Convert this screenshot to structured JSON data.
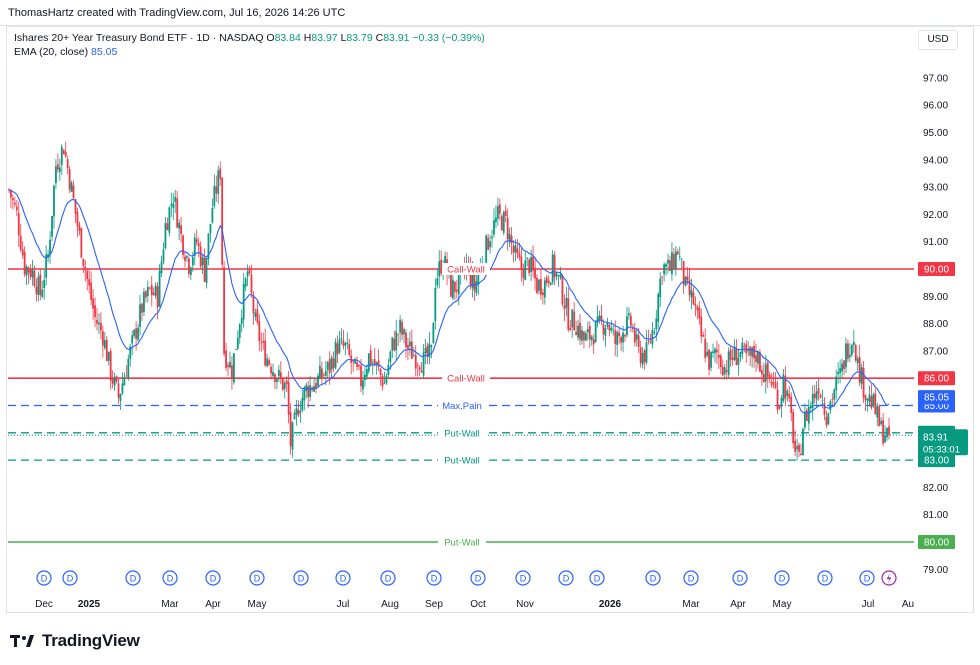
{
  "header": {
    "attribution": "ThomasHartz created with TradingView.com, Jul 16, 2026 14:26 UTC"
  },
  "legend": {
    "symbol": "Ishares 20+ Year Treasury Bond ETF · 1D · NASDAQ",
    "open_label": "O",
    "open": "83.84",
    "high_label": "H",
    "high": "83.97",
    "low_label": "L",
    "low": "83.79",
    "close_label": "C",
    "close": "83.91",
    "change": "−0.33 (−0.39%)",
    "ema_label": "EMA (20, close)",
    "ema_value": "85.05"
  },
  "currency": "USD",
  "footer": {
    "brand": "TradingView"
  },
  "colors": {
    "up": "#089981",
    "down": "#f23645",
    "ema": "#2962ff",
    "call_wall": "#f23645",
    "put_wall": "#089981",
    "max_pain": "#2962ff",
    "put_wall_strong": "#4caf50"
  },
  "chart_data": {
    "type": "candlestick",
    "yaxis": {
      "ticks": [
        79,
        80,
        81,
        82,
        83,
        84,
        85,
        86,
        87,
        88,
        89,
        90,
        91,
        92,
        93,
        94,
        95,
        96,
        97
      ],
      "tick_labels": [
        "79.00",
        "80.00",
        "81.00",
        "82.00",
        "83.00",
        "84.00",
        "85.00",
        "86.00",
        "87.00",
        "88.00",
        "89.00",
        "90.00",
        "91.00",
        "92.00",
        "93.00",
        "94.00",
        "95.00",
        "96.00",
        "97.00"
      ],
      "ylim": [
        78.5,
        98.2
      ]
    },
    "xaxis": {
      "labels": [
        "Dec",
        "2025",
        "Mar",
        "Apr",
        "May",
        "Jul",
        "Aug",
        "Sep",
        "Oct",
        "Nov",
        "2026",
        "Mar",
        "Apr",
        "May",
        "Jul",
        "Au"
      ],
      "bold": [
        "2025",
        "2026"
      ]
    },
    "levels": [
      {
        "label": "Call-Wall",
        "price": 90.0,
        "price_label": "90.00",
        "style": "solid",
        "color": "#f23645"
      },
      {
        "label": "Call-Wall",
        "price": 86.0,
        "price_label": "86.00",
        "style": "solid",
        "color": "#f23645"
      },
      {
        "label": "Max.Pain",
        "price": 85.0,
        "price_label": "85.00",
        "style": "dashed",
        "color": "#2962ff"
      },
      {
        "label": "Put-Wall",
        "price": 84.0,
        "price_label": "84.00",
        "style": "dashed",
        "color": "#089981"
      },
      {
        "label": "Put-Wall",
        "price": 83.0,
        "price_label": "83.00",
        "style": "dashed",
        "color": "#089981"
      },
      {
        "label": "Put-Wall",
        "price": 80.0,
        "price_label": "80.00",
        "style": "solid",
        "color": "#4caf50"
      }
    ],
    "last_price": {
      "value": 83.91,
      "label": "83.91",
      "countdown": "05:33:01"
    },
    "ema_last": {
      "value": 85.05,
      "label": "85.05"
    },
    "price_path": [
      [
        0,
        92.9
      ],
      [
        4,
        92.0
      ],
      [
        8,
        90.1
      ],
      [
        12,
        89.9
      ],
      [
        16,
        89.1
      ],
      [
        20,
        90.5
      ],
      [
        24,
        93.8
      ],
      [
        28,
        94.5
      ],
      [
        32,
        92.9
      ],
      [
        36,
        91.2
      ],
      [
        40,
        89.6
      ],
      [
        44,
        88.2
      ],
      [
        48,
        87.6
      ],
      [
        52,
        86.2
      ],
      [
        56,
        85.3
      ],
      [
        60,
        86.4
      ],
      [
        64,
        87.5
      ],
      [
        68,
        88.6
      ],
      [
        72,
        89.2
      ],
      [
        76,
        89.0
      ],
      [
        80,
        91.6
      ],
      [
        84,
        92.7
      ],
      [
        88,
        91.2
      ],
      [
        92,
        90.2
      ],
      [
        96,
        91.0
      ],
      [
        100,
        89.9
      ],
      [
        104,
        92.3
      ],
      [
        108,
        93.6
      ],
      [
        110,
        87.0
      ],
      [
        114,
        86.3
      ],
      [
        118,
        88.2
      ],
      [
        122,
        89.9
      ],
      [
        126,
        88.0
      ],
      [
        130,
        87.0
      ],
      [
        134,
        86.5
      ],
      [
        138,
        86.0
      ],
      [
        142,
        85.6
      ],
      [
        144,
        83.6
      ],
      [
        148,
        85.0
      ],
      [
        152,
        85.6
      ],
      [
        156,
        85.8
      ],
      [
        160,
        86.1
      ],
      [
        164,
        86.4
      ],
      [
        168,
        87.2
      ],
      [
        172,
        87.1
      ],
      [
        176,
        86.4
      ],
      [
        180,
        85.9
      ],
      [
        184,
        86.8
      ],
      [
        188,
        86.4
      ],
      [
        192,
        85.8
      ],
      [
        196,
        87.2
      ],
      [
        200,
        87.8
      ],
      [
        204,
        87.1
      ],
      [
        208,
        86.8
      ],
      [
        212,
        86.6
      ],
      [
        216,
        86.9
      ],
      [
        218,
        89.6
      ],
      [
        222,
        90.4
      ],
      [
        226,
        89.3
      ],
      [
        230,
        89.4
      ],
      [
        234,
        90.1
      ],
      [
        238,
        89.3
      ],
      [
        242,
        90.3
      ],
      [
        246,
        91.3
      ],
      [
        250,
        91.9
      ],
      [
        254,
        91.7
      ],
      [
        258,
        90.6
      ],
      [
        262,
        90.0
      ],
      [
        266,
        90.2
      ],
      [
        270,
        89.4
      ],
      [
        274,
        89.5
      ],
      [
        278,
        90.1
      ],
      [
        282,
        89.4
      ],
      [
        286,
        88.2
      ],
      [
        290,
        88.0
      ],
      [
        294,
        87.4
      ],
      [
        298,
        87.6
      ],
      [
        302,
        87.9
      ],
      [
        306,
        88.1
      ],
      [
        310,
        87.3
      ],
      [
        314,
        87.8
      ],
      [
        318,
        88.0
      ],
      [
        322,
        86.9
      ],
      [
        326,
        86.9
      ],
      [
        330,
        88.0
      ],
      [
        334,
        90.1
      ],
      [
        338,
        90.0
      ],
      [
        342,
        90.7
      ],
      [
        346,
        89.3
      ],
      [
        350,
        88.8
      ],
      [
        354,
        87.5
      ],
      [
        358,
        86.6
      ],
      [
        362,
        86.9
      ],
      [
        366,
        86.4
      ],
      [
        370,
        86.8
      ],
      [
        374,
        86.9
      ],
      [
        378,
        86.7
      ],
      [
        382,
        86.9
      ],
      [
        386,
        86.2
      ],
      [
        390,
        85.9
      ],
      [
        394,
        85.1
      ],
      [
        396,
        86.0
      ],
      [
        400,
        84.5
      ],
      [
        402,
        83.3
      ],
      [
        404,
        82.9
      ],
      [
        406,
        84.3
      ],
      [
        410,
        85.1
      ],
      [
        414,
        85.8
      ],
      [
        418,
        84.7
      ],
      [
        422,
        85.6
      ],
      [
        426,
        86.3
      ],
      [
        428,
        87.0
      ],
      [
        432,
        87.6
      ],
      [
        434,
        86.5
      ],
      [
        438,
        85.5
      ],
      [
        442,
        85.0
      ],
      [
        446,
        84.1
      ],
      [
        450,
        83.9
      ]
    ]
  }
}
